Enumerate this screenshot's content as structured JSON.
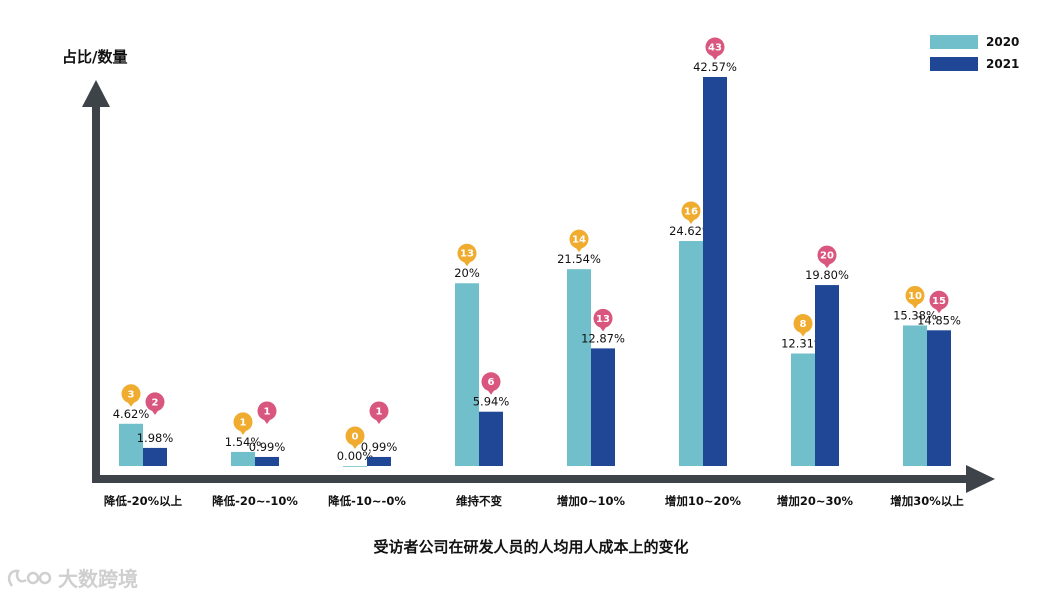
{
  "chart_data": {
    "type": "bar",
    "title": "受访者公司在研发人员的人均用人成本上的变化",
    "ylabel": "占比/数量",
    "ylim": [
      0,
      45
    ],
    "categories": [
      "降低-20%以上",
      "降低-20~-10%",
      "降低-10~-0%",
      "维持不变",
      "增加0~10%",
      "增加10~20%",
      "增加20~30%",
      "增加30%以上"
    ],
    "series": [
      {
        "name": "2020",
        "color": "#72bfcc",
        "pin_color": "#f0ac2f",
        "values": [
          4.62,
          1.54,
          0.0,
          20,
          21.54,
          24.62,
          12.31,
          15.38
        ],
        "labels": [
          "4.62%",
          "1.54%",
          "0.00%",
          "20%",
          "21.54%",
          "24.62%",
          "12.31%",
          "15.38%"
        ],
        "counts": [
          "3",
          "1",
          "0",
          "13",
          "14",
          "16",
          "8",
          "10"
        ]
      },
      {
        "name": "2021",
        "color": "#1f4795",
        "pin_color": "#d9577e",
        "values": [
          1.98,
          0.99,
          0.99,
          5.94,
          12.87,
          42.57,
          19.8,
          14.85
        ],
        "labels": [
          "1.98%",
          "0.99%",
          "0.99%",
          "5.94%",
          "12.87%",
          "42.57%",
          "19.80%",
          "14.85%"
        ],
        "counts": [
          "2",
          "1",
          "1",
          "6",
          "13",
          "43",
          "20",
          "15"
        ]
      }
    ],
    "legend": "top-right",
    "grid": false
  },
  "watermark": "大数跨境",
  "colors": {
    "axis": "#3d4348"
  }
}
